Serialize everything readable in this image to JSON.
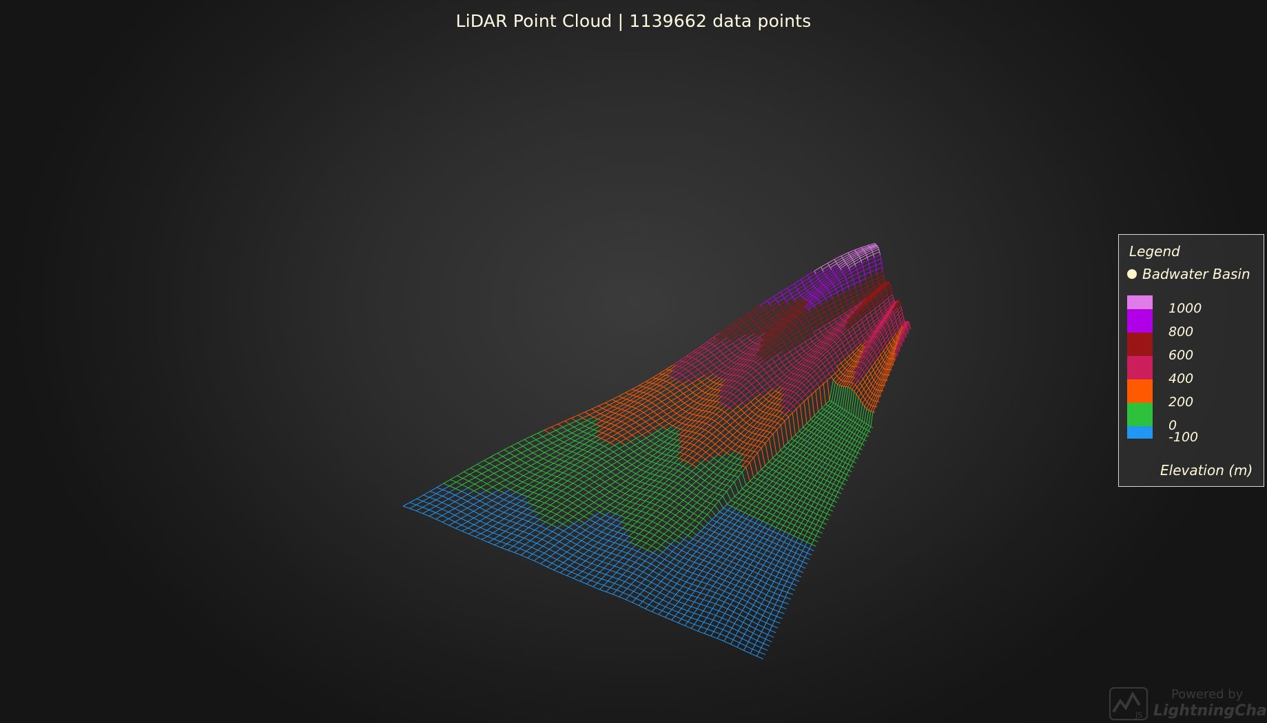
{
  "chart_data": {
    "type": "surface",
    "title": "LiDAR Point Cloud | 1139662 data points",
    "series": [
      {
        "name": "Badwater Basin",
        "marker_color": "#fff6cc"
      }
    ],
    "color_scale": {
      "title": "Elevation (m)",
      "stops": [
        {
          "from": -100,
          "to": 0,
          "color": "#2196f3"
        },
        {
          "from": 0,
          "to": 200,
          "color": "#2ec13b"
        },
        {
          "from": 200,
          "to": 400,
          "color": "#ff5a00"
        },
        {
          "from": 400,
          "to": 600,
          "color": "#cc1e5a"
        },
        {
          "from": 600,
          "to": 800,
          "color": "#9a1515"
        },
        {
          "from": 800,
          "to": 1000,
          "color": "#b000e8"
        },
        {
          "from": 1000,
          "to": 1100,
          "color": "#e07ce8"
        }
      ],
      "tick_labels": [
        "1000",
        "800",
        "600",
        "400",
        "200",
        "0",
        "-100"
      ]
    },
    "legend_title": "Legend",
    "legend_position": "right"
  },
  "watermark": {
    "powered_by": "Powered by",
    "brand": "LightningChart",
    "icon": "lightningchart-js-logo-icon"
  }
}
